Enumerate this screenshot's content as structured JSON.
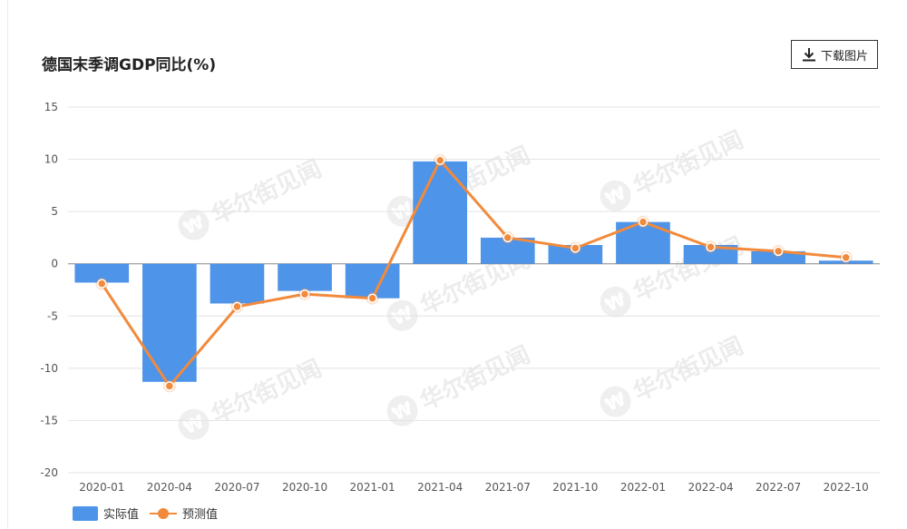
{
  "header": {
    "title": "德国末季调GDP同比(%)",
    "download_label": "下载图片"
  },
  "watermark": {
    "text": "华尔街见闻",
    "logo": "₩"
  },
  "legend": {
    "actual": "实际值",
    "forecast": "预测值"
  },
  "colors": {
    "bar": "#4e94e8",
    "line": "#f28a3c",
    "grid": "#e3e3e3",
    "axis": "#555555"
  },
  "chart_data": {
    "type": "bar",
    "categories": [
      "2020-01",
      "2020-04",
      "2020-07",
      "2020-10",
      "2021-01",
      "2021-04",
      "2021-07",
      "2021-10",
      "2022-01",
      "2022-04",
      "2022-07",
      "2022-10"
    ],
    "series": [
      {
        "name": "实际值",
        "type": "bar",
        "values": [
          -1.8,
          -11.3,
          -3.8,
          -2.6,
          -3.3,
          9.8,
          2.5,
          1.8,
          4.0,
          1.8,
          1.2,
          0.3
        ]
      },
      {
        "name": "预测值",
        "type": "line",
        "values": [
          -1.9,
          -11.7,
          -4.1,
          -2.9,
          -3.3,
          9.9,
          2.5,
          1.5,
          4.0,
          1.6,
          1.2,
          0.6
        ]
      }
    ],
    "title": "德国末季调GDP同比(%)",
    "ylim": [
      -20,
      15
    ],
    "yticks": [
      15,
      10,
      5,
      0,
      -5,
      -10,
      -15,
      -20
    ],
    "grid": true,
    "legend_position": "bottom-left"
  }
}
